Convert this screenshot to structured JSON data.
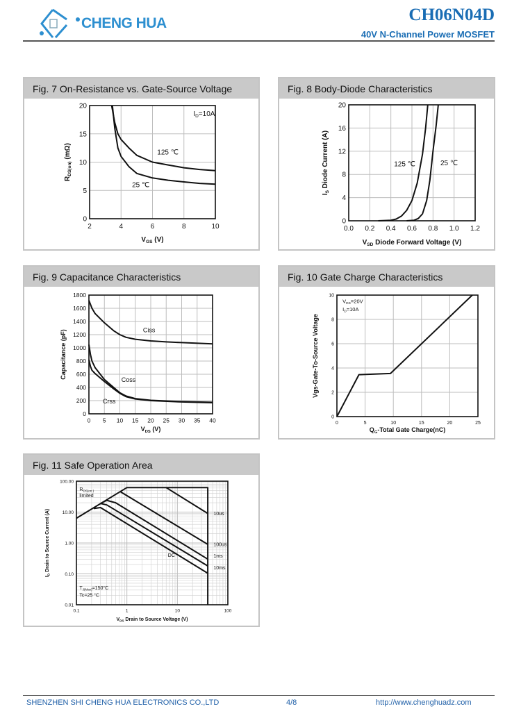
{
  "header": {
    "logo_text": "CHENG HUA",
    "part_number": "CH06N04D",
    "subtitle": "40V N-Channel Power MOSFET",
    "brand_color": "#1a6db4"
  },
  "footer": {
    "company": "SHENZHEN SHI CHENG HUA ELECTRONICS CO.,LTD",
    "page": "4/8",
    "url": "http://www.chenghuadz.com"
  },
  "figures": [
    {
      "title": "Fig. 7 On-Resistance vs. Gate-Source Voltage"
    },
    {
      "title": "Fig. 8 Body-Diode Characteristics"
    },
    {
      "title": "Fig. 9 Capacitance Characteristics"
    },
    {
      "title": "Fig. 10  Gate Charge Characteristics"
    },
    {
      "title": "Fig. 11 Safe Operation Area"
    }
  ],
  "chart_data": [
    {
      "type": "line",
      "title": "Fig. 7 On-Resistance vs. Gate-Source Voltage",
      "xlabel": [
        {
          "t": "V"
        },
        {
          "t": "GS",
          "sub": true
        },
        {
          "t": " (V)"
        }
      ],
      "ylabel": [
        {
          "t": "R"
        },
        {
          "t": "DS(on)",
          "sub": true
        },
        {
          "t": "  (mΩ)"
        }
      ],
      "xscale": "linear",
      "yscale": "linear",
      "xlim": [
        2,
        10
      ],
      "ylim": [
        0,
        20
      ],
      "xticks": [
        2,
        4,
        6,
        8,
        10
      ],
      "xtick_labels": [
        "2",
        "4",
        "6",
        "8",
        "10"
      ],
      "yticks": [
        0,
        5,
        10,
        15,
        20
      ],
      "ytick_labels": [
        "0",
        "5",
        "10",
        "15",
        "20"
      ],
      "grid": true,
      "series": [
        {
          "points": [
            [
              3.45,
              20
            ],
            [
              3.6,
              16
            ],
            [
              3.8,
              12.5
            ],
            [
              4,
              11
            ],
            [
              4.5,
              9.2
            ],
            [
              5,
              8
            ],
            [
              6,
              7.2
            ],
            [
              7,
              6.8
            ],
            [
              8,
              6.5
            ],
            [
              9,
              6.25
            ],
            [
              10,
              6.1
            ]
          ]
        },
        {
          "points": [
            [
              3.4,
              20
            ],
            [
              3.6,
              17
            ],
            [
              3.8,
              15
            ],
            [
              4,
              14
            ],
            [
              4.5,
              12.5
            ],
            [
              5,
              11.2
            ],
            [
              6,
              10
            ],
            [
              7,
              9.5
            ],
            [
              8,
              9
            ],
            [
              9,
              8.7
            ],
            [
              10,
              8.5
            ]
          ]
        }
      ],
      "annotations": [
        {
          "x": 8.6,
          "y": 18.6,
          "text": [
            {
              "t": "I"
            },
            {
              "t": "D",
              "sub": true
            },
            {
              "t": "=10A"
            }
          ]
        },
        {
          "x": 6.3,
          "y": 11.8,
          "text": [
            {
              "t": "125 ℃"
            }
          ]
        },
        {
          "x": 4.7,
          "y": 6.0,
          "text": [
            {
              "t": "25 ℃"
            }
          ]
        }
      ]
    },
    {
      "type": "line",
      "title": "Fig. 8 Body-Diode Characteristics",
      "xlabel": [
        {
          "t": "V"
        },
        {
          "t": "SD",
          "sub": true
        },
        {
          "t": " Diode Forward Voltage (V)"
        }
      ],
      "ylabel": [
        {
          "t": "I"
        },
        {
          "t": "S",
          "sub": true
        },
        {
          "t": " Diode Current (A)"
        }
      ],
      "xscale": "linear",
      "yscale": "linear",
      "xlim": [
        0,
        1.2
      ],
      "ylim": [
        0,
        20
      ],
      "xticks": [
        0,
        0.2,
        0.4,
        0.6,
        0.8,
        1.0,
        1.2
      ],
      "xtick_labels": [
        "0.0",
        "0.2",
        "0.4",
        "0.6",
        "0.8",
        "1.0",
        "1.2"
      ],
      "yticks": [
        0,
        4,
        8,
        12,
        16,
        20
      ],
      "ytick_labels": [
        "0",
        "4",
        "8",
        "12",
        "16",
        "20"
      ],
      "grid": true,
      "series": [
        {
          "points": [
            [
              0.28,
              0
            ],
            [
              0.4,
              0.1
            ],
            [
              0.45,
              0.3
            ],
            [
              0.5,
              0.8
            ],
            [
              0.55,
              1.8
            ],
            [
              0.6,
              3.5
            ],
            [
              0.65,
              6.5
            ],
            [
              0.7,
              11.5
            ],
            [
              0.73,
              16
            ],
            [
              0.75,
              20
            ]
          ]
        },
        {
          "points": [
            [
              0.55,
              0
            ],
            [
              0.62,
              0.1
            ],
            [
              0.66,
              0.4
            ],
            [
              0.7,
              1.2
            ],
            [
              0.74,
              3.5
            ],
            [
              0.77,
              7
            ],
            [
              0.8,
              12
            ],
            [
              0.83,
              16.5
            ],
            [
              0.85,
              20
            ]
          ]
        }
      ],
      "annotations": [
        {
          "x": 0.43,
          "y": 9.8,
          "text": [
            {
              "t": "125 ℃"
            }
          ]
        },
        {
          "x": 0.87,
          "y": 10.0,
          "text": [
            {
              "t": "25 ℃"
            }
          ]
        }
      ]
    },
    {
      "type": "line",
      "title": "Fig. 9 Capacitance Characteristics",
      "xlabel": [
        {
          "t": "V"
        },
        {
          "t": "DS",
          "sub": true
        },
        {
          "t": " (V)"
        }
      ],
      "ylabel": [
        {
          "t": "Capacitance (pF)"
        }
      ],
      "xscale": "linear",
      "yscale": "linear",
      "xlim": [
        0,
        40
      ],
      "ylim": [
        0,
        1800
      ],
      "xticks": [
        0,
        5,
        10,
        15,
        20,
        25,
        30,
        35,
        40
      ],
      "xtick_labels": [
        "0",
        "5",
        "10",
        "15",
        "20",
        "25",
        "30",
        "35",
        "40"
      ],
      "yticks": [
        0,
        200,
        400,
        600,
        800,
        1000,
        1200,
        1400,
        1600,
        1800
      ],
      "ytick_labels": [
        "0",
        "200",
        "400",
        "600",
        "800",
        "1000",
        "1200",
        "1400",
        "1600",
        "1800"
      ],
      "grid": true,
      "series": [
        {
          "name": "Ciss",
          "points": [
            [
              0,
              1720
            ],
            [
              1,
              1600
            ],
            [
              2,
              1520
            ],
            [
              5,
              1380
            ],
            [
              8,
              1260
            ],
            [
              10,
              1200
            ],
            [
              12,
              1160
            ],
            [
              15,
              1130
            ],
            [
              20,
              1105
            ],
            [
              25,
              1090
            ],
            [
              30,
              1080
            ],
            [
              40,
              1060
            ]
          ]
        },
        {
          "name": "Coss",
          "points": [
            [
              0,
              1050
            ],
            [
              0.5,
              900
            ],
            [
              1,
              800
            ],
            [
              2,
              700
            ],
            [
              5,
              520
            ],
            [
              8,
              400
            ],
            [
              10,
              320
            ],
            [
              12,
              270
            ],
            [
              15,
              230
            ],
            [
              20,
              205
            ],
            [
              30,
              185
            ],
            [
              40,
              175
            ]
          ]
        },
        {
          "name": "Crss",
          "points": [
            [
              0,
              820
            ],
            [
              0.5,
              720
            ],
            [
              1,
              660
            ],
            [
              2,
              610
            ],
            [
              5,
              490
            ],
            [
              8,
              380
            ],
            [
              10,
              310
            ],
            [
              12,
              260
            ],
            [
              15,
              225
            ],
            [
              20,
              200
            ],
            [
              30,
              180
            ],
            [
              40,
              168
            ]
          ]
        }
      ],
      "annotations": [
        {
          "x": 17.5,
          "y": 1270,
          "text": [
            {
              "t": "Ciss"
            }
          ]
        },
        {
          "x": 10.5,
          "y": 520,
          "text": [
            {
              "t": "Coss"
            }
          ]
        },
        {
          "x": 4.5,
          "y": 190,
          "text": [
            {
              "t": "Crss"
            }
          ]
        }
      ]
    },
    {
      "type": "line",
      "title": "Fig. 10  Gate Charge Characteristics",
      "xlabel": [
        {
          "t": "Q"
        },
        {
          "t": "G",
          "sub": true
        },
        {
          "t": "-Total Gate Charge(nC)"
        }
      ],
      "ylabel": [
        {
          "t": "Vgs-Gate-To-Source Voltage"
        }
      ],
      "xscale": "linear",
      "yscale": "linear",
      "xlim": [
        0,
        25
      ],
      "ylim": [
        0,
        10
      ],
      "xticks": [
        0,
        5,
        10,
        15,
        20,
        25
      ],
      "xtick_labels": [
        "0",
        "5",
        "10",
        "15",
        "20",
        "25"
      ],
      "yticks": [
        0,
        2,
        4,
        6,
        8,
        10
      ],
      "ytick_labels": [
        "0",
        "2",
        "4",
        "6",
        "8",
        "10"
      ],
      "grid": true,
      "series": [
        {
          "points": [
            [
              0,
              0
            ],
            [
              3.9,
              3.45
            ],
            [
              9.5,
              3.55
            ],
            [
              24,
              10
            ]
          ]
        }
      ],
      "annotations": [
        {
          "x": 1.0,
          "y": 9.5,
          "text": [
            {
              "t": "V"
            },
            {
              "t": "DS",
              "sub": true
            },
            {
              "t": "=20V"
            }
          ]
        },
        {
          "x": 1.0,
          "y": 8.9,
          "text": [
            {
              "t": "I"
            },
            {
              "t": "D",
              "sub": true
            },
            {
              "t": "=10A"
            }
          ]
        }
      ]
    },
    {
      "type": "line",
      "title": "Fig. 11 Safe Operation Area",
      "xlabel": [
        {
          "t": "V"
        },
        {
          "t": "DS",
          "sub": true
        },
        {
          "t": "  Drain to Source Voltage (V)"
        }
      ],
      "ylabel": [
        {
          "t": "I"
        },
        {
          "t": "D",
          "sub": true
        },
        {
          "t": " Drain to Source Current (A)"
        }
      ],
      "xscale": "log",
      "yscale": "log",
      "xlim": [
        0.1,
        100
      ],
      "ylim": [
        0.01,
        100
      ],
      "xticks": [
        0.1,
        1,
        10,
        100
      ],
      "xtick_labels": [
        "0.1",
        "1",
        "10",
        "100"
      ],
      "yticks": [
        0.01,
        0.1,
        1,
        10,
        100
      ],
      "ytick_labels": [
        "0.01",
        "0.10",
        "1.00",
        "10.00",
        "100.00"
      ],
      "grid": true,
      "series": [
        {
          "name": "limit",
          "points": [
            [
              0.1,
              6.3
            ],
            [
              1,
              62
            ],
            [
              40,
              62
            ],
            [
              40,
              0.01
            ]
          ]
        },
        {
          "name": "10us",
          "points": [
            [
              6,
              62
            ],
            [
              40,
              9
            ]
          ]
        },
        {
          "name": "100us",
          "points": [
            [
              0.75,
              45
            ],
            [
              40,
              0.9
            ]
          ]
        },
        {
          "name": "1ms",
          "points": [
            [
              0.3,
              19
            ],
            [
              0.4,
              24
            ],
            [
              0.6,
              20
            ],
            [
              40,
              0.3
            ]
          ]
        },
        {
          "name": "10ms",
          "points": [
            [
              0.3,
              19
            ],
            [
              0.4,
              17
            ],
            [
              40,
              0.18
            ]
          ]
        },
        {
          "name": "DC",
          "points": [
            [
              0.22,
              13
            ],
            [
              0.3,
              14
            ],
            [
              40,
              0.105
            ]
          ]
        }
      ],
      "annotations": [
        {
          "x": 0.115,
          "y": 55,
          "text": [
            {
              "t": "R"
            },
            {
              "t": "DS(on )",
              "sub": true
            }
          ]
        },
        {
          "x": 0.115,
          "y": 36,
          "text": [
            {
              "t": "limited"
            }
          ]
        },
        {
          "x": 52,
          "y": 9,
          "text": [
            {
              "t": "10us"
            }
          ]
        },
        {
          "x": 52,
          "y": 0.9,
          "text": [
            {
              "t": "100us"
            }
          ]
        },
        {
          "x": 52,
          "y": 0.38,
          "text": [
            {
              "t": "1ms"
            }
          ]
        },
        {
          "x": 52,
          "y": 0.16,
          "text": [
            {
              "t": "10ms"
            }
          ]
        },
        {
          "x": 6.5,
          "y": 0.4,
          "text": [
            {
              "t": "DC"
            }
          ]
        },
        {
          "x": 0.115,
          "y": 0.035,
          "text": [
            {
              "t": "T"
            },
            {
              "t": "J(Max)",
              "sub": true
            },
            {
              "t": "=150°C"
            }
          ]
        },
        {
          "x": 0.115,
          "y": 0.023,
          "text": [
            {
              "t": "Tc=25 °C"
            }
          ]
        }
      ]
    }
  ]
}
